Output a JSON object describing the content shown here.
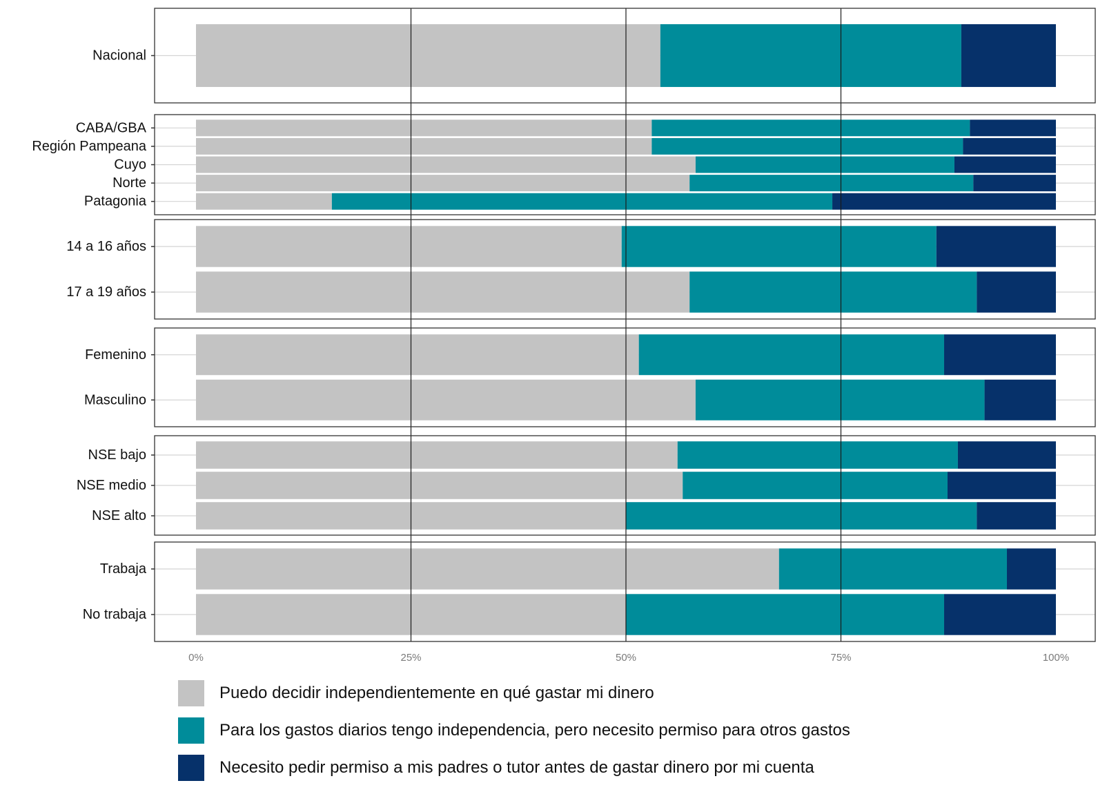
{
  "chart_data": {
    "type": "bar",
    "orientation": "horizontal",
    "stacked": "percent",
    "title": "",
    "xlabel": "",
    "ylabel": "",
    "xlim": [
      0,
      100
    ],
    "x_ticks": [
      "0%",
      "25%",
      "50%",
      "75%",
      "100%"
    ],
    "grid": "vertical lines at 25%, 50%, 75%",
    "legend_position": "bottom",
    "panels": [
      {
        "id": "total",
        "categories": [
          "Nacional"
        ],
        "values": [
          [
            54,
            35,
            11
          ]
        ]
      },
      {
        "id": "region",
        "categories": [
          "CABA/GBA",
          "Región Pampeana",
          "Cuyo",
          "Norte",
          "Patagonia"
        ],
        "values": [
          [
            53,
            37,
            10
          ],
          [
            53,
            36.2,
            10.8
          ],
          [
            58.1,
            30.1,
            11.8
          ],
          [
            57.4,
            33,
            9.6
          ],
          [
            15.8,
            58.2,
            26
          ]
        ]
      },
      {
        "id": "age",
        "categories": [
          "14 a 16 años",
          "17 a 19 años"
        ],
        "values": [
          [
            49.5,
            36.6,
            13.9
          ],
          [
            57.4,
            33.4,
            9.2
          ]
        ]
      },
      {
        "id": "gender",
        "categories": [
          "Femenino",
          "Masculino"
        ],
        "values": [
          [
            51.5,
            35.5,
            13
          ],
          [
            58.1,
            33.6,
            8.3
          ]
        ]
      },
      {
        "id": "nse",
        "categories": [
          "NSE  bajo",
          "NSE medio",
          "NSE alto"
        ],
        "values": [
          [
            56,
            32.6,
            11.4
          ],
          [
            56.6,
            30.8,
            12.6
          ],
          [
            50,
            40.8,
            9.2
          ]
        ]
      },
      {
        "id": "work",
        "categories": [
          "Trabaja",
          "No trabaja"
        ],
        "values": [
          [
            67.8,
            26.5,
            5.7
          ],
          [
            50,
            37,
            13
          ]
        ]
      }
    ],
    "series": [
      {
        "name": "Puedo decidir independientemente en qué gastar mi dinero",
        "color": "#c3c3c3"
      },
      {
        "name": "Para los gastos diarios tengo independencia, pero necesito permiso para otros gastos",
        "color": "#008c9a"
      },
      {
        "name": "Necesito pedir permiso a mis padres o tutor antes de gastar dinero por mi cuenta",
        "color": "#06316a"
      }
    ]
  }
}
